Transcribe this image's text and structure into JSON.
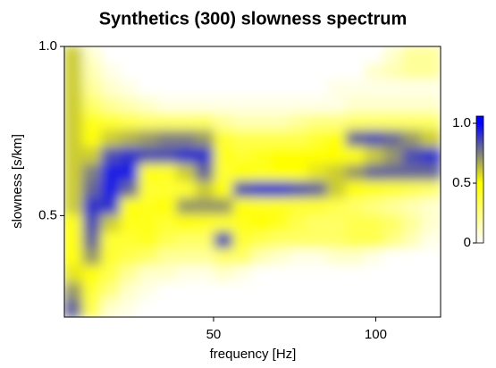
{
  "chart_data": {
    "type": "heatmap",
    "title": "Synthetics (300) slowness spectrum",
    "x_label": "frequency [Hz]",
    "y_label": "slowness [s/km]",
    "xlim": [
      4,
      120
    ],
    "ylim": [
      0.2,
      1.0
    ],
    "xticks": [
      50,
      100
    ],
    "yticks": [
      0.5,
      {
        "value": 1.0,
        "label": "1.0"
      }
    ],
    "zlim": [
      0,
      1.06
    ],
    "zticks": [
      0,
      0.5,
      {
        "value": 1.0,
        "label": "1.0"
      }
    ],
    "colorscale": [
      {
        "value": 0,
        "color": "#ffffff"
      },
      {
        "value": 0.5,
        "color": "#ffff00"
      },
      {
        "value": 1,
        "color": "#0000ff"
      }
    ],
    "x": [
      6.9,
      12.7,
      18.5,
      24.3,
      30.1,
      35.9,
      41.7,
      47.5,
      53.3,
      59.1,
      64.9,
      70.7,
      76.5,
      82.3,
      88.1,
      93.9,
      99.7,
      105.5,
      111.3,
      117.1
    ],
    "y": [
      0.975,
      0.925,
      0.875,
      0.825,
      0.775,
      0.725,
      0.675,
      0.625,
      0.575,
      0.525,
      0.475,
      0.425,
      0.375,
      0.325,
      0.275,
      0.225
    ],
    "z": [
      [
        0.6,
        0.1,
        0,
        0,
        0,
        0,
        0,
        0,
        0,
        0,
        0,
        0,
        0,
        0,
        0,
        0,
        0,
        0.1,
        0.2,
        0.2
      ],
      [
        0.6,
        0.15,
        0.05,
        0,
        0,
        0,
        0,
        0,
        0,
        0,
        0,
        0,
        0,
        0,
        0,
        0,
        0.1,
        0.15,
        0.2,
        0.2
      ],
      [
        0.6,
        0.2,
        0.1,
        0.05,
        0,
        0,
        0,
        0,
        0,
        0,
        0,
        0,
        0,
        0,
        0.05,
        0.05,
        0.05,
        0.05,
        0.05,
        0.05
      ],
      [
        0.6,
        0.3,
        0.2,
        0.15,
        0.1,
        0.05,
        0.05,
        0.05,
        0.05,
        0.05,
        0.05,
        0.05,
        0.05,
        0.05,
        0.05,
        0.1,
        0.1,
        0.1,
        0.1,
        0.1
      ],
      [
        0.6,
        0.45,
        0.4,
        0.35,
        0.3,
        0.3,
        0.3,
        0.3,
        0.2,
        0.15,
        0.15,
        0.15,
        0.2,
        0.25,
        0.25,
        0.3,
        0.3,
        0.3,
        0.3,
        0.3
      ],
      [
        0.6,
        0.5,
        0.6,
        0.65,
        0.7,
        0.75,
        0.75,
        0.7,
        0.4,
        0.35,
        0.35,
        0.35,
        0.35,
        0.4,
        0.5,
        0.8,
        0.85,
        0.8,
        0.7,
        0.6
      ],
      [
        0.6,
        0.6,
        0.85,
        0.9,
        0.85,
        0.85,
        0.9,
        0.9,
        0.45,
        0.4,
        0.45,
        0.5,
        0.5,
        0.5,
        0.5,
        0.5,
        0.6,
        0.7,
        0.85,
        0.9
      ],
      [
        0.6,
        0.75,
        0.95,
        0.95,
        0.5,
        0.45,
        0.6,
        0.8,
        0.4,
        0.5,
        0.45,
        0.5,
        0.5,
        0.55,
        0.6,
        0.7,
        0.8,
        0.8,
        0.8,
        0.8
      ],
      [
        0.6,
        0.8,
        0.95,
        0.8,
        0.4,
        0.4,
        0.4,
        0.6,
        0.5,
        0.85,
        0.9,
        0.9,
        0.85,
        0.8,
        0.6,
        0.5,
        0.45,
        0.4,
        0.35,
        0.3
      ],
      [
        0.6,
        0.9,
        0.9,
        0.5,
        0.45,
        0.5,
        0.7,
        0.7,
        0.7,
        0.5,
        0.45,
        0.45,
        0.4,
        0.4,
        0.35,
        0.3,
        0.25,
        0.2,
        0.15,
        0.1
      ],
      [
        0.5,
        0.85,
        0.6,
        0.45,
        0.45,
        0.4,
        0.5,
        0.45,
        0.4,
        0.45,
        0.5,
        0.45,
        0.35,
        0.3,
        0.3,
        0.35,
        0.35,
        0.3,
        0.2,
        0.1
      ],
      [
        0.5,
        0.8,
        0.4,
        0.4,
        0.45,
        0.35,
        0.3,
        0.3,
        0.85,
        0.4,
        0.35,
        0.3,
        0.3,
        0.3,
        0.3,
        0.35,
        0.35,
        0.25,
        0.15,
        0.05
      ],
      [
        0.5,
        0.7,
        0.4,
        0.35,
        0.3,
        0.2,
        0.2,
        0.2,
        0.3,
        0.3,
        0.15,
        0.1,
        0.05,
        0.05,
        0.1,
        0.1,
        0.05,
        0,
        0,
        0
      ],
      [
        0.55,
        0.5,
        0.35,
        0.2,
        0.1,
        0.1,
        0.05,
        0.05,
        0.1,
        0.05,
        0,
        0,
        0,
        0,
        0,
        0,
        0,
        0,
        0,
        0
      ],
      [
        0.7,
        0.4,
        0.25,
        0.1,
        0.05,
        0,
        0,
        0,
        0,
        0,
        0,
        0,
        0,
        0,
        0,
        0,
        0,
        0,
        0,
        0
      ],
      [
        0.8,
        0.35,
        0.1,
        0.05,
        0,
        0,
        0,
        0,
        0,
        0,
        0,
        0,
        0,
        0,
        0,
        0,
        0,
        0,
        0,
        0
      ]
    ]
  }
}
